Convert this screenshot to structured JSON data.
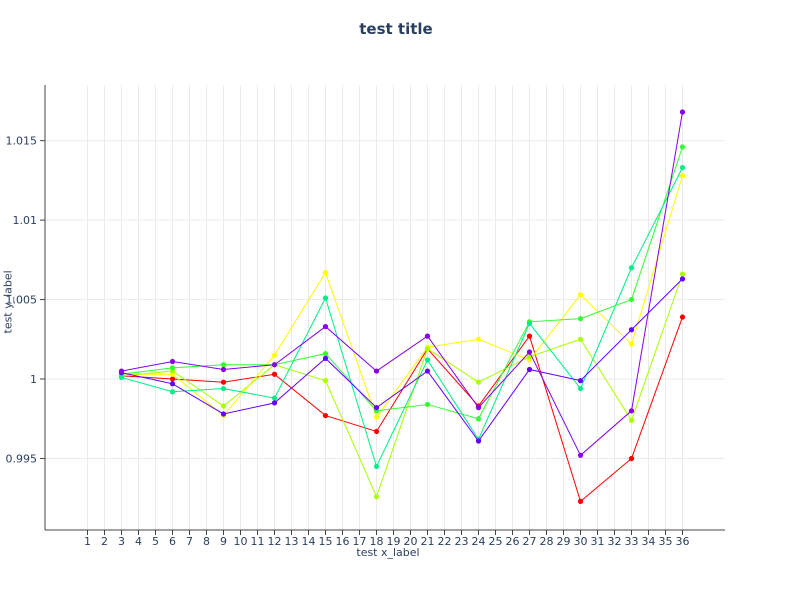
{
  "chart_data": {
    "type": "line",
    "title": "test title",
    "xlabel": "test x_label",
    "ylabel": "test y_label",
    "xlim": [
      -1.5,
      38.5
    ],
    "ylim": [
      0.9905,
      1.0185
    ],
    "x_ticks": [
      1,
      2,
      3,
      4,
      5,
      6,
      7,
      8,
      9,
      10,
      11,
      12,
      13,
      14,
      15,
      16,
      17,
      18,
      19,
      20,
      21,
      22,
      23,
      24,
      25,
      26,
      27,
      28,
      29,
      30,
      31,
      32,
      33,
      34,
      35,
      36
    ],
    "y_ticks": [
      {
        "value": 0.995,
        "label": "0.995"
      },
      {
        "value": 1.0,
        "label": "1"
      },
      {
        "value": 1.005,
        "label": "1.005"
      },
      {
        "value": 1.01,
        "label": "1.01"
      },
      {
        "value": 1.015,
        "label": "1.015"
      }
    ],
    "grid": true,
    "x": [
      3,
      6,
      9,
      12,
      15,
      18,
      21,
      24,
      27,
      30,
      33,
      36
    ],
    "series": [
      {
        "color": "#ff0000",
        "values": [
          1.0002,
          1.0,
          0.9998,
          1.0003,
          0.9977,
          0.9967,
          1.0019,
          0.9983,
          1.0027,
          0.9923,
          0.995,
          1.0039
        ]
      },
      {
        "color": "#ffff00",
        "values": [
          1.0003,
          1.0003,
          0.9977,
          1.0015,
          1.0067,
          0.9976,
          1.002,
          1.0025,
          1.0012,
          1.0053,
          1.0022,
          1.0128
        ]
      },
      {
        "color": "#aaff00",
        "values": [
          1.0002,
          1.0005,
          0.9983,
          1.0009,
          0.9999,
          0.9926,
          1.0019,
          0.9998,
          1.0014,
          1.0025,
          0.9974,
          1.0066
        ]
      },
      {
        "color": "#33ff33",
        "values": [
          1.0003,
          1.0007,
          1.0009,
          1.0009,
          1.0016,
          0.998,
          0.9984,
          0.9975,
          1.0036,
          1.0038,
          1.005,
          1.0146
        ]
      },
      {
        "color": "#00ee88",
        "values": [
          1.0001,
          0.9992,
          0.9994,
          0.9988,
          1.0051,
          0.9945,
          1.0012,
          0.9962,
          1.0035,
          0.9994,
          1.007,
          1.0133
        ]
      },
      {
        "color": "#6600ff",
        "values": [
          1.0004,
          0.9997,
          0.9978,
          0.9985,
          1.0013,
          0.9982,
          1.0005,
          0.9961,
          1.0006,
          0.9999,
          1.0031,
          1.0063
        ]
      },
      {
        "color": "#8800ee",
        "values": [
          1.0005,
          1.0011,
          1.0006,
          1.0009,
          1.0033,
          1.0005,
          1.0027,
          0.9982,
          1.0017,
          0.9952,
          0.998,
          1.0168
        ]
      }
    ]
  }
}
